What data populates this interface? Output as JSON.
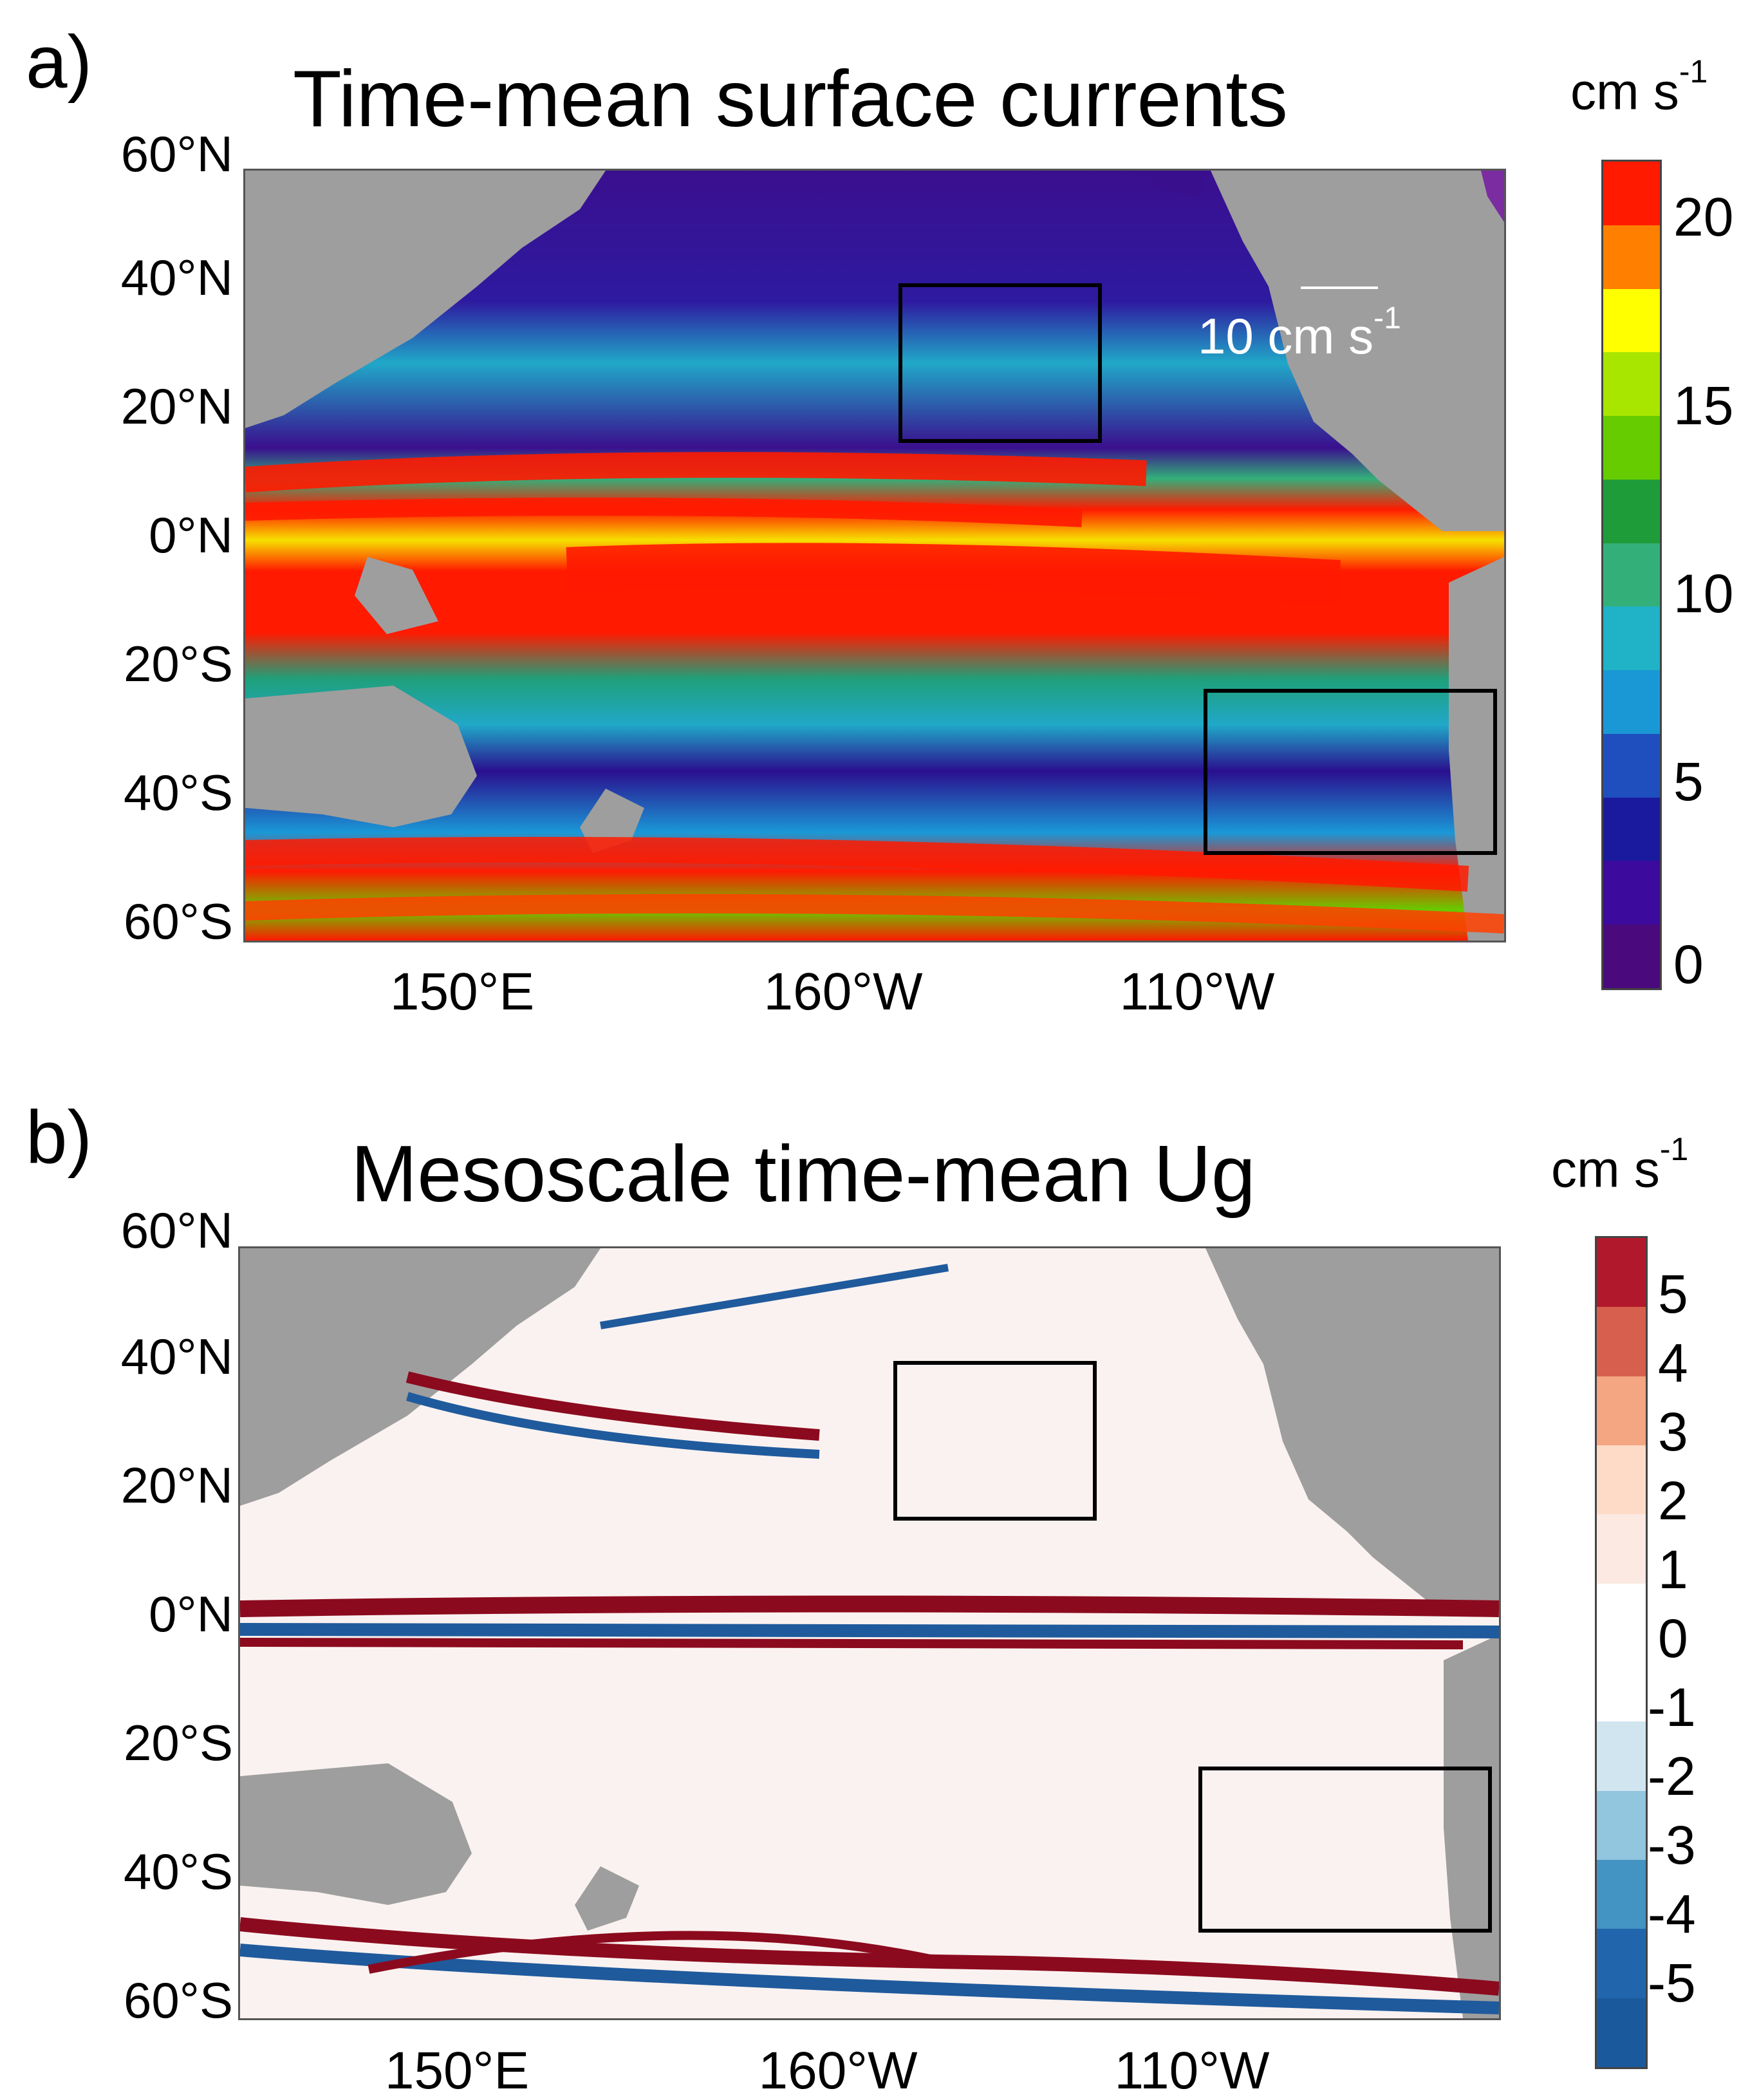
{
  "panel_a": {
    "letter": "a)",
    "title": "Time-mean surface currents",
    "unit": "cm s",
    "unit_exp": "-1",
    "lat_labels": [
      "60°N",
      "40°N",
      "20°N",
      "0°N",
      "20°S",
      "40°S",
      "60°S"
    ],
    "lon_labels": [
      "150°E",
      "160°W",
      "110°W"
    ],
    "colorbar_ticks": [
      "20",
      "15",
      "10",
      "5",
      "0"
    ],
    "colorbar_colors": [
      "#ff1a00",
      "#ff7f00",
      "#ffff00",
      "#a8e600",
      "#66cc00",
      "#1f9c3a",
      "#33b07a",
      "#20b2c6",
      "#1a98d6",
      "#1f4fbf",
      "#1a1a9e",
      "#3d0a9e",
      "#4a0a7e"
    ],
    "ref_arrow_label": "10 cm s",
    "ref_arrow_exp": "-1"
  },
  "panel_b": {
    "letter": "b)",
    "title": "Mesoscale time-mean Ug",
    "unit": "cm s",
    "unit_exp": "-1",
    "lat_labels": [
      "60°N",
      "40°N",
      "20°N",
      "0°N",
      "20°S",
      "40°S",
      "60°S"
    ],
    "lon_labels": [
      "150°E",
      "160°W",
      "110°W"
    ],
    "colorbar_ticks": [
      "5",
      "4",
      "3",
      "2",
      "1",
      "0",
      "-1",
      "-2",
      "-3",
      "-4",
      "-5"
    ],
    "colorbar_colors": [
      "#b2182b",
      "#d6604d",
      "#f4a582",
      "#fddbc7",
      "#fbe9e2",
      "#ffffff",
      "#ffffff",
      "#d1e5f0",
      "#92c5de",
      "#4393c3",
      "#2166ac",
      "#1a5a9c"
    ]
  }
}
